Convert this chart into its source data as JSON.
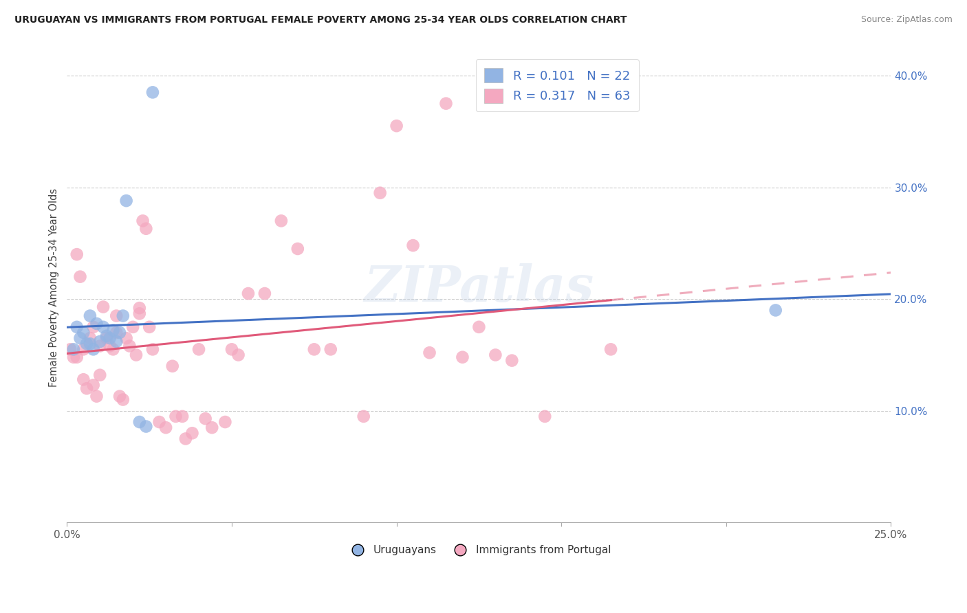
{
  "title": "URUGUAYAN VS IMMIGRANTS FROM PORTUGAL FEMALE POVERTY AMONG 25-34 YEAR OLDS CORRELATION CHART",
  "source": "Source: ZipAtlas.com",
  "ylabel": "Female Poverty Among 25-34 Year Olds",
  "xlabel_uruguayan": "Uruguayans",
  "xlabel_portugal": "Immigrants from Portugal",
  "xlim": [
    0.0,
    0.25
  ],
  "ylim": [
    0.0,
    0.42
  ],
  "xtick_positions": [
    0.0,
    0.05,
    0.1,
    0.15,
    0.2,
    0.25
  ],
  "xticklabels": [
    "0.0%",
    "",
    "",
    "",
    "",
    "25.0%"
  ],
  "ytick_positions": [
    0.1,
    0.2,
    0.3,
    0.4
  ],
  "yticklabels": [
    "10.0%",
    "20.0%",
    "30.0%",
    "40.0%"
  ],
  "grid_color": "#cccccc",
  "bg_color": "#ffffff",
  "uru_color": "#92b4e3",
  "port_color": "#f4a8c0",
  "uru_line_color": "#4472c4",
  "port_line_color": "#e05a7a",
  "ytick_color": "#4472c4",
  "xtick_color": "#555555",
  "legend_R1": "0.101",
  "legend_N1": "22",
  "legend_R2": "0.317",
  "legend_N2": "63",
  "watermark": "ZIPatlas",
  "uru_x": [
    0.002,
    0.003,
    0.004,
    0.005,
    0.006,
    0.007,
    0.007,
    0.008,
    0.009,
    0.01,
    0.011,
    0.012,
    0.013,
    0.014,
    0.015,
    0.016,
    0.017,
    0.018,
    0.022,
    0.024,
    0.026,
    0.215
  ],
  "uru_y": [
    0.155,
    0.175,
    0.165,
    0.17,
    0.16,
    0.185,
    0.16,
    0.155,
    0.178,
    0.162,
    0.175,
    0.167,
    0.165,
    0.172,
    0.162,
    0.17,
    0.185,
    0.288,
    0.09,
    0.086,
    0.385,
    0.19
  ],
  "port_x": [
    0.001,
    0.002,
    0.003,
    0.003,
    0.004,
    0.005,
    0.005,
    0.006,
    0.007,
    0.008,
    0.008,
    0.009,
    0.01,
    0.01,
    0.011,
    0.012,
    0.013,
    0.014,
    0.015,
    0.015,
    0.016,
    0.017,
    0.018,
    0.019,
    0.02,
    0.021,
    0.022,
    0.022,
    0.023,
    0.024,
    0.025,
    0.026,
    0.028,
    0.03,
    0.032,
    0.033,
    0.035,
    0.036,
    0.038,
    0.04,
    0.042,
    0.044,
    0.048,
    0.05,
    0.052,
    0.055,
    0.06,
    0.065,
    0.07,
    0.075,
    0.08,
    0.09,
    0.095,
    0.1,
    0.105,
    0.11,
    0.115,
    0.12,
    0.125,
    0.13,
    0.135,
    0.145,
    0.165
  ],
  "port_y": [
    0.155,
    0.148,
    0.24,
    0.148,
    0.22,
    0.155,
    0.128,
    0.12,
    0.165,
    0.175,
    0.123,
    0.113,
    0.158,
    0.132,
    0.193,
    0.165,
    0.158,
    0.155,
    0.17,
    0.185,
    0.113,
    0.11,
    0.165,
    0.158,
    0.175,
    0.15,
    0.187,
    0.192,
    0.27,
    0.263,
    0.175,
    0.155,
    0.09,
    0.085,
    0.14,
    0.095,
    0.095,
    0.075,
    0.08,
    0.155,
    0.093,
    0.085,
    0.09,
    0.155,
    0.15,
    0.205,
    0.205,
    0.27,
    0.245,
    0.155,
    0.155,
    0.095,
    0.295,
    0.355,
    0.248,
    0.152,
    0.375,
    0.148,
    0.175,
    0.15,
    0.145,
    0.095,
    0.155
  ]
}
